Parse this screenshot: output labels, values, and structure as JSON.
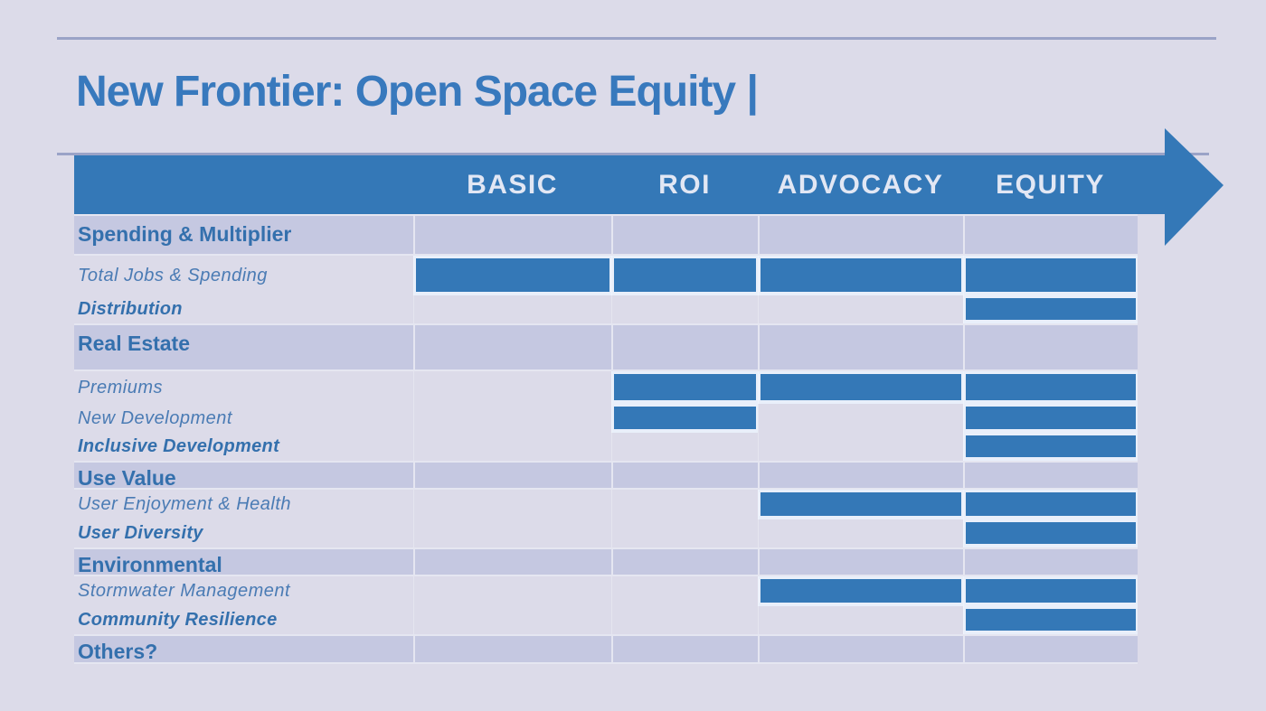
{
  "slide": {
    "title": "New Frontier: Open Space Equity |",
    "columns": [
      {
        "label": "BASIC"
      },
      {
        "label": "ROI"
      },
      {
        "label": "ADVOCACY"
      },
      {
        "label": "EQUITY"
      }
    ],
    "rows": [
      {
        "label": "Spending & Multiplier",
        "type": "section",
        "bars": [
          0,
          0,
          0,
          0
        ]
      },
      {
        "label": "Total Jobs & Spending",
        "type": "item",
        "bars": [
          1,
          1,
          1,
          1
        ]
      },
      {
        "label": "Distribution",
        "type": "outcome",
        "bars": [
          0,
          0,
          0,
          1
        ]
      },
      {
        "label": "Real Estate",
        "type": "section",
        "bars": [
          0,
          0,
          0,
          0
        ]
      },
      {
        "label": "Premiums",
        "type": "item",
        "bars": [
          0,
          1,
          1,
          1
        ]
      },
      {
        "label": "New Development",
        "type": "item",
        "bars": [
          0,
          1,
          0,
          1
        ]
      },
      {
        "label": "Inclusive Development",
        "type": "outcome",
        "bars": [
          0,
          0,
          0,
          1
        ]
      },
      {
        "label": "Use Value",
        "type": "section",
        "bars": [
          0,
          0,
          0,
          0
        ]
      },
      {
        "label": "User Enjoyment & Health",
        "type": "item",
        "bars": [
          0,
          0,
          1,
          1
        ]
      },
      {
        "label": "User Diversity",
        "type": "outcome",
        "bars": [
          0,
          0,
          0,
          1
        ]
      },
      {
        "label": "Environmental",
        "type": "section",
        "bars": [
          0,
          0,
          0,
          0
        ]
      },
      {
        "label": "Stormwater Management",
        "type": "item",
        "bars": [
          0,
          0,
          1,
          1
        ]
      },
      {
        "label": "Community Resilience",
        "type": "outcome",
        "bars": [
          0,
          0,
          0,
          1
        ]
      },
      {
        "label": "Others?",
        "type": "section",
        "bars": [
          0,
          0,
          0,
          0
        ]
      }
    ],
    "colors": {
      "accent_blue": "#3478b7",
      "title_blue": "#3879bd",
      "section_label_blue": "#3470ad",
      "item_label_blue": "#4a7bb4",
      "header_text": "#e2e7f4",
      "page_background": "#dcdbe9",
      "section_row_background": "#c5c8e1",
      "bar_outline": "#e9effa",
      "rule_line": "#9aa3c7"
    }
  }
}
